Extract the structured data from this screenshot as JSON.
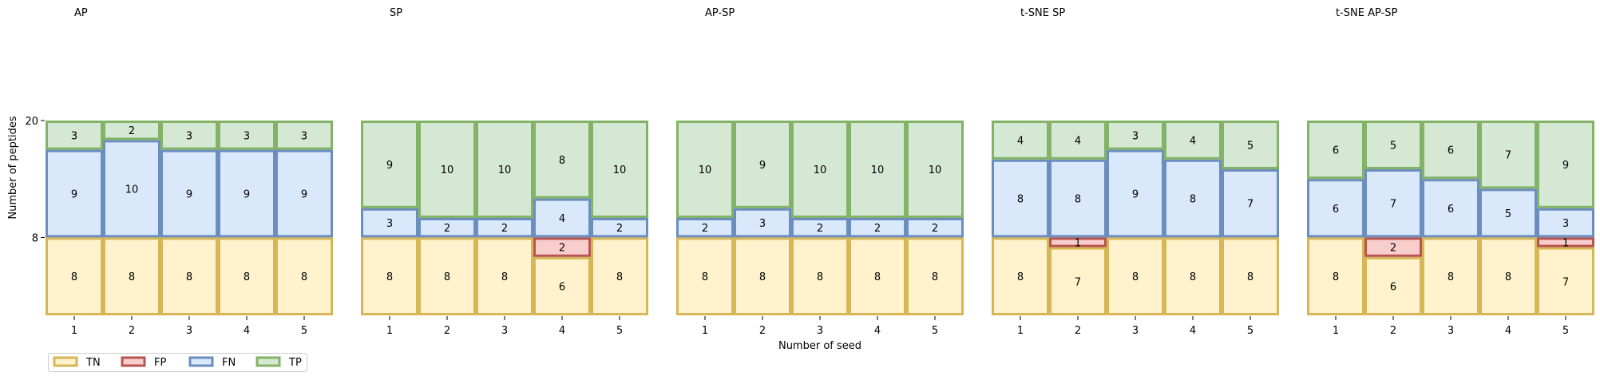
{
  "figure": {
    "xlabel": "Number of seed",
    "ylabel": "Number of peptides",
    "y_ticks": [
      "8",
      "20"
    ]
  },
  "legend": {
    "placement": "bottom-left",
    "items": [
      {
        "label": "TN",
        "fill": "#fff2cc",
        "stroke": "#d6b656"
      },
      {
        "label": "FP",
        "fill": "#f8cecc",
        "stroke": "#b85450"
      },
      {
        "label": "FN",
        "fill": "#dae8fc",
        "stroke": "#6c8ebf"
      },
      {
        "label": "TP",
        "fill": "#d5e8d4",
        "stroke": "#82b366"
      }
    ]
  },
  "chart_data": [
    {
      "type": "bar",
      "title": "AP",
      "categories": [
        "1",
        "2",
        "3",
        "4",
        "5"
      ],
      "series": [
        {
          "name": "TN",
          "values": [
            8,
            8,
            8,
            8,
            8
          ]
        },
        {
          "name": "FP",
          "values": [
            0,
            0,
            0,
            0,
            0
          ]
        },
        {
          "name": "FN",
          "values": [
            9,
            10,
            9,
            9,
            9
          ]
        },
        {
          "name": "TP",
          "values": [
            3,
            2,
            3,
            3,
            3
          ]
        }
      ]
    },
    {
      "type": "bar",
      "title": "SP",
      "categories": [
        "1",
        "2",
        "3",
        "4",
        "5"
      ],
      "series": [
        {
          "name": "TN",
          "values": [
            8,
            8,
            8,
            6,
            8
          ]
        },
        {
          "name": "FP",
          "values": [
            0,
            0,
            0,
            2,
            0
          ]
        },
        {
          "name": "FN",
          "values": [
            3,
            2,
            2,
            4,
            2
          ]
        },
        {
          "name": "TP",
          "values": [
            9,
            10,
            10,
            8,
            10
          ]
        }
      ]
    },
    {
      "type": "bar",
      "title": "AP-SP",
      "categories": [
        "1",
        "2",
        "3",
        "4",
        "5"
      ],
      "series": [
        {
          "name": "TN",
          "values": [
            8,
            8,
            8,
            8,
            8
          ]
        },
        {
          "name": "FP",
          "values": [
            0,
            0,
            0,
            0,
            0
          ]
        },
        {
          "name": "FN",
          "values": [
            2,
            3,
            2,
            2,
            2
          ]
        },
        {
          "name": "TP",
          "values": [
            10,
            9,
            10,
            10,
            10
          ]
        }
      ]
    },
    {
      "type": "bar",
      "title": "t-SNE SP",
      "categories": [
        "1",
        "2",
        "3",
        "4",
        "5"
      ],
      "series": [
        {
          "name": "TN",
          "values": [
            8,
            7,
            8,
            8,
            8
          ]
        },
        {
          "name": "FP",
          "values": [
            0,
            1,
            0,
            0,
            0
          ]
        },
        {
          "name": "FN",
          "values": [
            8,
            8,
            9,
            8,
            7
          ]
        },
        {
          "name": "TP",
          "values": [
            4,
            4,
            3,
            4,
            5
          ]
        }
      ]
    },
    {
      "type": "bar",
      "title": "t-SNE AP-SP",
      "categories": [
        "1",
        "2",
        "3",
        "4",
        "5"
      ],
      "series": [
        {
          "name": "TN",
          "values": [
            8,
            6,
            8,
            8,
            7
          ]
        },
        {
          "name": "FP",
          "values": [
            0,
            2,
            0,
            0,
            1
          ]
        },
        {
          "name": "FN",
          "values": [
            6,
            7,
            6,
            5,
            3
          ]
        },
        {
          "name": "TP",
          "values": [
            6,
            5,
            6,
            7,
            9
          ]
        }
      ]
    }
  ]
}
